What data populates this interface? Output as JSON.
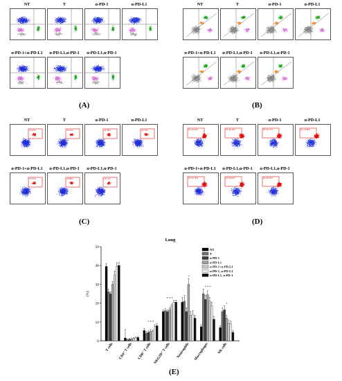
{
  "figure": {
    "col_titles": [
      "NT",
      "T",
      "α-PD-1",
      "α-PD-L1",
      "α-PD-1+α-PD-L1",
      "α-PD-L1,α-PD-1",
      "α-PD-L1,α-PD-1"
    ],
    "panels": [
      {
        "letter": "(A)",
        "id": "A",
        "kind": "quadrant-blue-green",
        "gate_color": "#1a9e1a"
      },
      {
        "letter": "(B)",
        "id": "B",
        "kind": "gray-green-orange",
        "gate_color": "#2e9e2e"
      },
      {
        "letter": "(C)",
        "id": "C",
        "kind": "blue-red-gate",
        "gate_color": "#d40000"
      },
      {
        "letter": "(D)",
        "id": "D",
        "kind": "red-blue-gate",
        "gate_color": "#d40000"
      },
      {
        "letter": "(E)",
        "id": "E",
        "kind": "bar"
      }
    ],
    "gate_values_C": [
      "14.33%",
      "34.52%",
      "23.38%",
      "23.74%",
      "19.61%",
      "23.88%",
      "24.11%"
    ],
    "gate_values_D": [
      "P2 45.93%",
      "P2 44.29%",
      "P2 63.71%",
      "P2 51.68%",
      "P2 53.78%",
      "P2 59.87%",
      "P2 58.22%"
    ]
  },
  "colors": {
    "blue": "#1f2fd6",
    "green": "#16a516",
    "red": "#e01010",
    "gray": "#8c8c8c",
    "pink": "#d36bd3",
    "orange": "#f08c1a"
  },
  "chart_data": {
    "type": "bar",
    "title": "Lung",
    "ylabel": "(%)",
    "xlabel": "",
    "ylim": [
      0,
      50
    ],
    "yticks": [
      0,
      10,
      20,
      30,
      40,
      50
    ],
    "categories": [
      "T cells",
      "CD4⁺ T cells",
      "CD8⁺ T cells",
      "NKG2D⁺ T cells",
      "Neutrophils",
      "Macrophages",
      "NK cells"
    ],
    "series": [
      {
        "name": "NT",
        "color": "#000000",
        "values": [
          39.5,
          1.5,
          5.5,
          15.5,
          20.5,
          7.5,
          7.0
        ],
        "errors": [
          1.5,
          4.5,
          1.0,
          1.0,
          2.5,
          1.0,
          1.0
        ]
      },
      {
        "name": "T",
        "color": "#6e6e6e",
        "values": [
          26.0,
          0.5,
          4.0,
          16.0,
          21.0,
          25.0,
          15.5
        ],
        "errors": [
          1.5,
          0.5,
          0.8,
          1.0,
          3.0,
          2.5,
          2.0
        ]
      },
      {
        "name": "α-PD-1",
        "color": "#3c3c3c",
        "values": [
          25.0,
          0.8,
          4.5,
          15.5,
          15.5,
          22.0,
          16.5
        ],
        "errors": [
          1.0,
          0.5,
          0.8,
          1.0,
          2.0,
          2.0,
          2.0
        ]
      },
      {
        "name": "α-PD-L1",
        "color": "#a0a0a0",
        "values": [
          30.0,
          1.0,
          5.0,
          16.5,
          30.0,
          24.5,
          12.0
        ],
        "errors": [
          1.5,
          0.5,
          1.0,
          1.0,
          3.0,
          2.0,
          1.5
        ]
      },
      {
        "name": "α-PD-1+α-PD-L1",
        "color": "#c8c8c8",
        "values": [
          35.0,
          1.2,
          5.0,
          18.5,
          13.5,
          21.0,
          9.5
        ],
        "errors": [
          2.0,
          0.5,
          0.8,
          1.0,
          2.0,
          2.0,
          1.5
        ]
      },
      {
        "name": "α-PD-1, α-PD-L1",
        "color": "#e8e8e8",
        "values": [
          39.5,
          1.5,
          7.5,
          20.5,
          14.0,
          18.5,
          9.0
        ],
        "errors": [
          2.0,
          0.5,
          1.0,
          1.0,
          2.0,
          2.0,
          1.5
        ]
      },
      {
        "name": "α-PD-L1, α-PD-1",
        "color": "#111111",
        "values": [
          40.0,
          1.8,
          8.0,
          20.5,
          12.0,
          11.5,
          4.5
        ],
        "errors": [
          1.5,
          0.5,
          1.0,
          1.0,
          1.5,
          1.5,
          1.0
        ]
      }
    ],
    "significance": [
      {
        "category": 2,
        "text": "* * *"
      },
      {
        "category": 3,
        "text": "* * *"
      },
      {
        "category": 4,
        "text": "*"
      },
      {
        "category": 5,
        "text": "* * *"
      },
      {
        "category": 6,
        "text": "*"
      }
    ],
    "legend_placement": "top-right"
  }
}
